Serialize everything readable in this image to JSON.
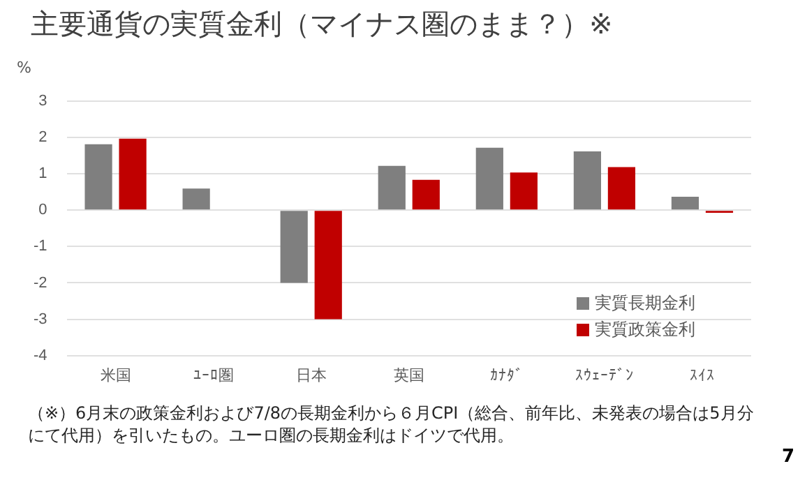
{
  "chart_data": {
    "type": "bar",
    "title": "主要通貨の実質金利（マイナス圏のまま？）※",
    "ylabel": "%",
    "categories": [
      "米国",
      "ﾕｰﾛ圏",
      "日本",
      "英国",
      "ｶﾅﾀﾞ",
      "ｽｳｪｰﾃﾞﾝ",
      "ｽｲｽ"
    ],
    "series": [
      {
        "name": "実質長期金利",
        "color": "#7f7f7f",
        "values": [
          1.82,
          0.6,
          -2.0,
          1.22,
          1.72,
          1.62,
          0.37
        ]
      },
      {
        "name": "実質政策金利",
        "color": "#c00000",
        "values": [
          1.97,
          null,
          -3.0,
          0.84,
          1.04,
          1.19,
          -0.07
        ]
      }
    ],
    "ylim": [
      -4,
      3
    ],
    "yticks": [
      -4,
      -3,
      -2,
      -1,
      0,
      1,
      2,
      3
    ],
    "grid": "y",
    "legend": "bottom right",
    "annotations": [
      "（※）6月末の政策金利および7/8の長期金利から６月CPI（総合、前年比、未発表の場合は5月分にて代用）を引いたもの。ユーロ圏の長期金利はドイツで代用。",
      "7"
    ]
  }
}
